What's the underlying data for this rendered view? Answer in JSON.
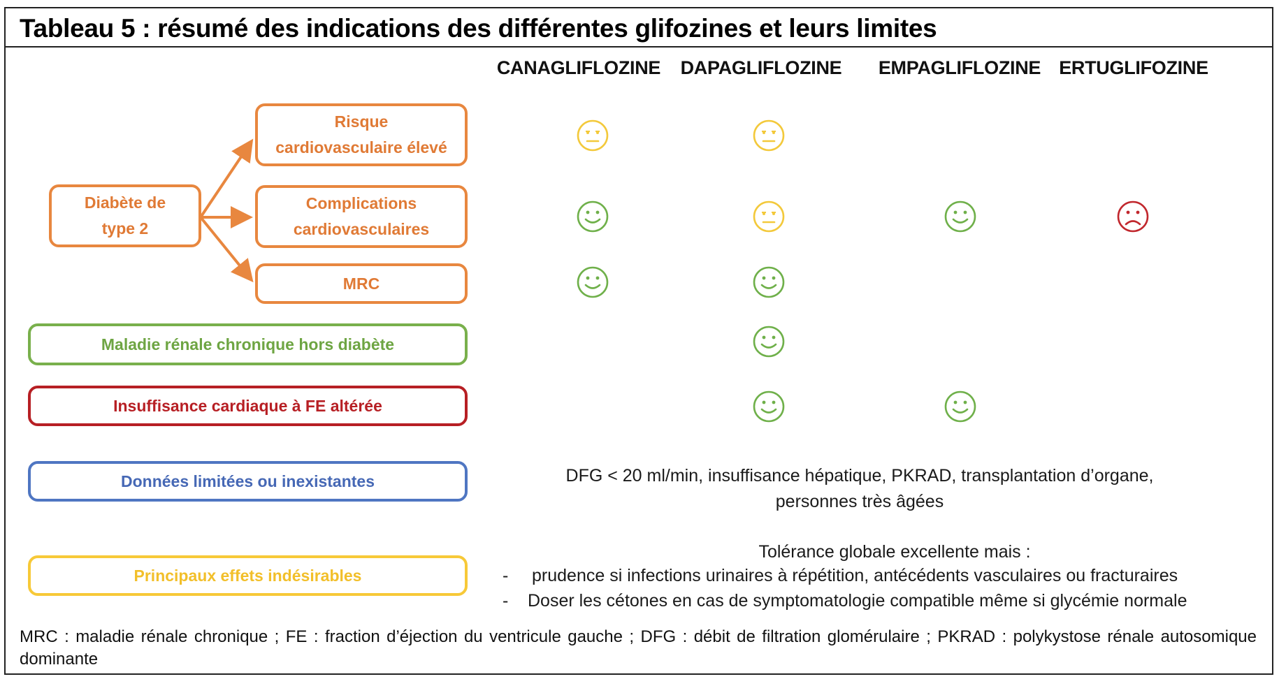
{
  "title": "Tableau 5 : résumé des indications des différentes glifozines et leurs limites",
  "columns": [
    "CANAGLIFLOZINE",
    "DAPAGLIFLOZINE",
    "EMPAGLIFLOZINE",
    "ERTUGLIFOZINE"
  ],
  "diabetes": {
    "parent_lines": [
      "Diabète de",
      "type 2"
    ],
    "sub_risque_lines": [
      "Risque",
      "cardiovasculaire élevé"
    ],
    "sub_complications_lines": [
      "Complications",
      "cardiovasculaires"
    ],
    "sub_mrc": "MRC"
  },
  "rows": {
    "maladie_renale": "Maladie rénale chronique hors diabète",
    "insuffisance_cardiaque": "Insuffisance cardiaque à FE altérée",
    "donnees_limitees": "Données limitées ou inexistantes",
    "effets_indesirables": "Principaux effets indésirables"
  },
  "ratings": {
    "risque_cv": [
      "neutral",
      "neutral",
      null,
      null
    ],
    "complications_cv": [
      "happy",
      "neutral",
      "happy",
      "sad"
    ],
    "mrc": [
      "happy",
      "happy",
      null,
      null
    ],
    "maladie_renale": [
      null,
      "happy",
      null,
      null
    ],
    "insuffisance_cardiaque": [
      null,
      "happy",
      "happy",
      null
    ]
  },
  "donnees_text_lines": [
    "DFG < 20 ml/min, insuffisance hépatique, PKRAD, transplantation d’organe,",
    "personnes très âgées"
  ],
  "effets": {
    "intro": "Tolérance globale excellente mais :",
    "bullet_marker": "-",
    "bullets": [
      "prudence si infections urinaires à répétition, antécédents vasculaires ou fracturaires",
      "Doser les cétones en cas de symptomatologie compatible même si glycémie normale"
    ]
  },
  "footnote": "MRC : maladie rénale chronique ; FE : fraction d’éjection du ventricule gauche ; DFG : débit de filtration glomérulaire ; PKRAD : polykystose rénale autosomique dominante",
  "colors": {
    "orange": "#e8873f",
    "green": "#79b04c",
    "red": "#b71f24",
    "blue": "#4f76c2",
    "yellow": "#f7c938",
    "happy_face": "#6fb04a",
    "neutral_face": "#f3c93b",
    "sad_face": "#c1272d"
  },
  "icons": {
    "happy": "smiling-face-icon",
    "neutral": "neutral-face-icon",
    "sad": "frowning-face-icon"
  }
}
